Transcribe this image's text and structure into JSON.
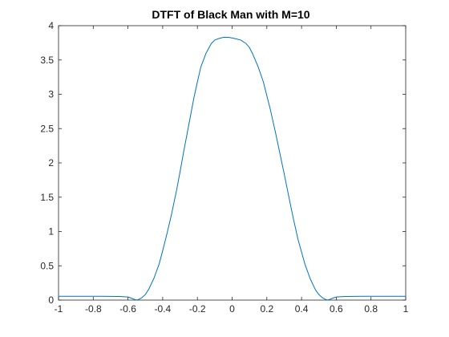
{
  "chart_data": {
    "type": "line",
    "title": "DTFT of Black Man with M=10",
    "xlabel": "",
    "ylabel": "",
    "xlim": [
      -1,
      1
    ],
    "ylim": [
      0,
      4
    ],
    "x_ticks": [
      -1,
      -0.8,
      -0.6,
      -0.4,
      -0.2,
      0,
      0.2,
      0.4,
      0.6,
      0.8,
      1
    ],
    "x_tick_labels": [
      "-1",
      "-0.8",
      "-0.6",
      "-0.4",
      "-0.2",
      "0",
      "0.2",
      "0.4",
      "0.6",
      "0.8",
      "1"
    ],
    "y_ticks": [
      0,
      0.5,
      1,
      1.5,
      2,
      2.5,
      3,
      3.5,
      4
    ],
    "y_tick_labels": [
      "0",
      "0.5",
      "1",
      "1.5",
      "2",
      "2.5",
      "3",
      "3.5",
      "4"
    ],
    "grid": false,
    "line_color": "#0072bd",
    "series": [
      {
        "x": [
          -1,
          -0.95,
          -0.9,
          -0.85,
          -0.8,
          -0.75,
          -0.7,
          -0.65,
          -0.6,
          -0.58,
          -0.56,
          -0.55,
          -0.54,
          -0.52,
          -0.5,
          -0.48,
          -0.45,
          -0.42,
          -0.4,
          -0.38,
          -0.35,
          -0.32,
          -0.3,
          -0.28,
          -0.25,
          -0.22,
          -0.2,
          -0.18,
          -0.15,
          -0.12,
          -0.1,
          -0.08,
          -0.05,
          -0.02,
          0,
          0.02,
          0.05,
          0.08,
          0.1,
          0.12,
          0.15,
          0.18,
          0.2,
          0.22,
          0.25,
          0.28,
          0.3,
          0.32,
          0.35,
          0.38,
          0.4,
          0.42,
          0.45,
          0.48,
          0.5,
          0.52,
          0.54,
          0.55,
          0.56,
          0.58,
          0.6,
          0.65,
          0.7,
          0.75,
          0.8,
          0.85,
          0.9,
          0.95,
          1
        ],
        "y": [
          0.055,
          0.055,
          0.055,
          0.055,
          0.055,
          0.055,
          0.054,
          0.052,
          0.045,
          0.028,
          0.008,
          0.002,
          0.008,
          0.035,
          0.08,
          0.16,
          0.32,
          0.53,
          0.72,
          0.92,
          1.24,
          1.6,
          1.87,
          2.15,
          2.55,
          2.95,
          3.18,
          3.4,
          3.6,
          3.74,
          3.79,
          3.81,
          3.83,
          3.83,
          3.82,
          3.81,
          3.79,
          3.74,
          3.68,
          3.58,
          3.4,
          3.18,
          2.98,
          2.78,
          2.44,
          2.08,
          1.84,
          1.59,
          1.22,
          0.88,
          0.7,
          0.52,
          0.31,
          0.15,
          0.08,
          0.035,
          0.008,
          0.002,
          0.008,
          0.028,
          0.045,
          0.052,
          0.054,
          0.055,
          0.055,
          0.055,
          0.055,
          0.055,
          0.055
        ]
      }
    ]
  }
}
